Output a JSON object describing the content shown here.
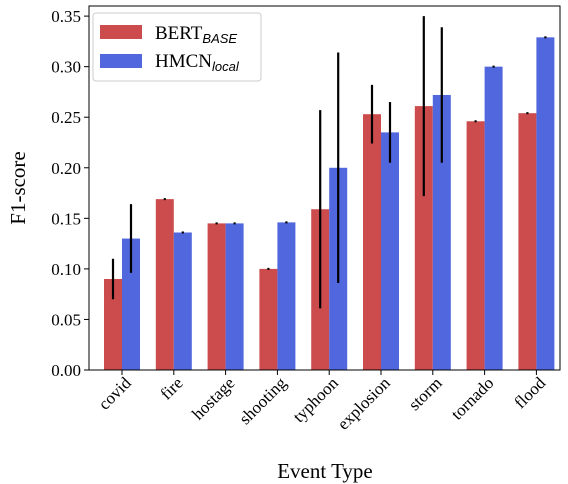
{
  "chart_data": {
    "type": "bar",
    "title": "",
    "xlabel": "Event Type",
    "ylabel": "F1-score",
    "ylim": [
      0.0,
      0.36
    ],
    "yticks": [
      "0.00",
      "0.05",
      "0.10",
      "0.15",
      "0.20",
      "0.25",
      "0.30",
      "0.35"
    ],
    "grid": false,
    "legend_position": "top-left",
    "categories": [
      "covid",
      "fire",
      "hostage",
      "shooting",
      "typhoon",
      "explosion",
      "storm",
      "tornado",
      "flood"
    ],
    "series": [
      {
        "name_main": "BERT",
        "name_sub": "BASE",
        "color": "#cc4c4e",
        "values": [
          0.09,
          0.169,
          0.145,
          0.1,
          0.159,
          0.253,
          0.261,
          0.246,
          0.254
        ],
        "errors": [
          0.02,
          0.001,
          0.001,
          0.001,
          0.098,
          0.029,
          0.089,
          0.001,
          0.001
        ]
      },
      {
        "name_main": "HMCN",
        "name_sub": "local",
        "color": "#5067de",
        "values": [
          0.13,
          0.136,
          0.145,
          0.146,
          0.2,
          0.235,
          0.272,
          0.3,
          0.329
        ],
        "errors": [
          0.034,
          0.001,
          0.001,
          0.001,
          0.114,
          0.03,
          0.067,
          0.001,
          0.001
        ]
      }
    ]
  }
}
